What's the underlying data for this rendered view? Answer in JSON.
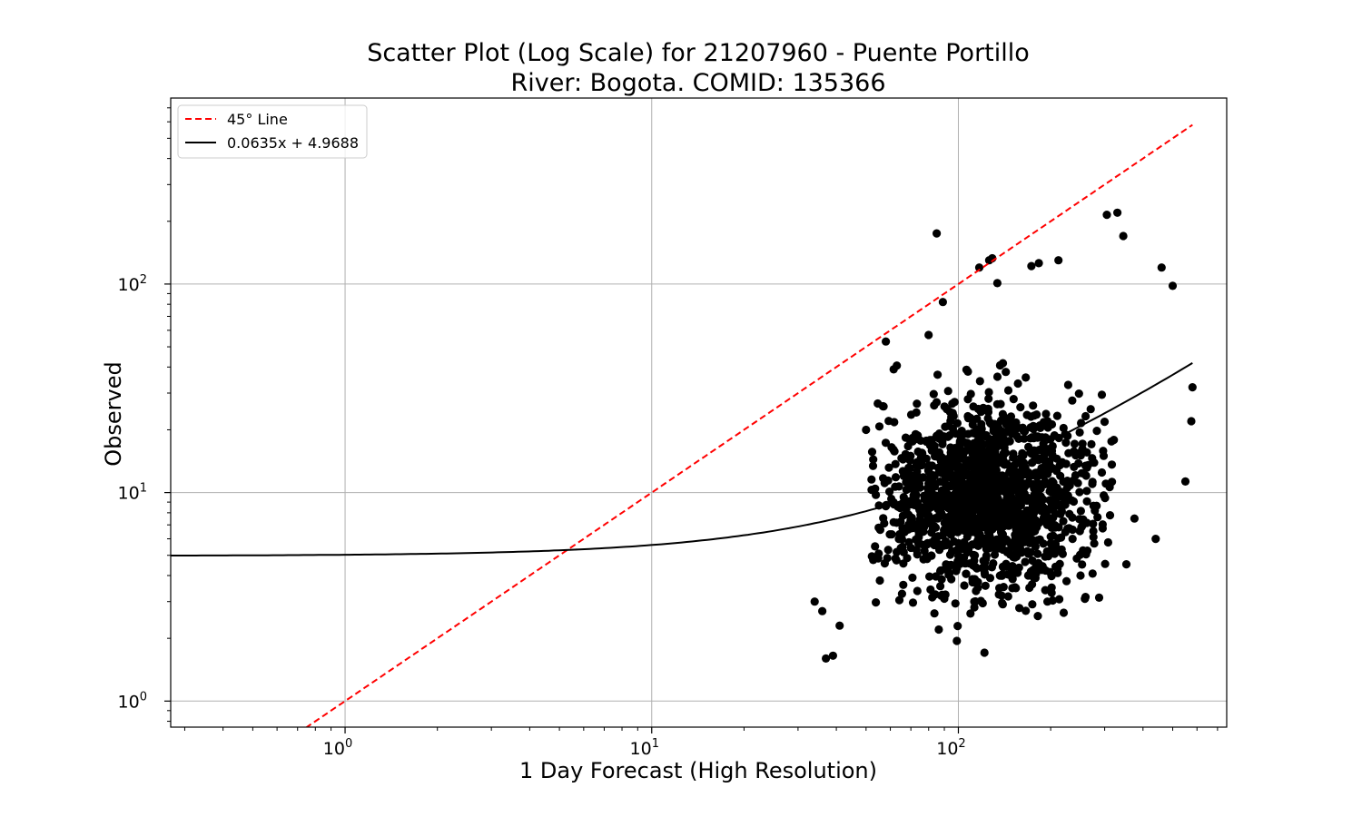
{
  "chart_data": {
    "type": "scatter",
    "title_line1": "Scatter Plot (Log Scale) for 21207960 - Puente Portillo",
    "title_line2": "River: Bogota. COMID: 135366",
    "xlabel": "1 Day Forecast (High Resolution)",
    "ylabel": "Observed",
    "x_scale": "log",
    "y_scale": "log",
    "xlim": [
      0.27,
      750
    ],
    "ylim": [
      0.75,
      780
    ],
    "grid": true,
    "legend_position": "top-left",
    "x_ticks": [
      {
        "value": 1,
        "base": "10",
        "exp": "0"
      },
      {
        "value": 10,
        "base": "10",
        "exp": "1"
      },
      {
        "value": 100,
        "base": "10",
        "exp": "2"
      }
    ],
    "y_ticks": [
      {
        "value": 1,
        "base": "10",
        "exp": "0"
      },
      {
        "value": 10,
        "base": "10",
        "exp": "1"
      },
      {
        "value": 100,
        "base": "10",
        "exp": "2"
      }
    ],
    "series": [
      {
        "name": "45° Line",
        "kind": "line",
        "color": "#ff0000",
        "dash": "dashed",
        "slope": 1,
        "intercept": 0,
        "x_range": [
          0.7,
          580
        ]
      },
      {
        "name": "0.0635x + 4.9688",
        "kind": "line",
        "color": "#000000",
        "dash": "solid",
        "slope": 0.0635,
        "intercept": 4.9688,
        "x_range": [
          0.27,
          580
        ]
      },
      {
        "name": "observations",
        "kind": "points",
        "color": "#000000",
        "notable_points": [
          [
            85,
            175
          ],
          [
            126,
            130
          ],
          [
            129,
            133
          ],
          [
            117,
            120
          ],
          [
            305,
            215
          ],
          [
            330,
            220
          ],
          [
            345,
            170
          ],
          [
            183,
            126
          ],
          [
            212,
            130
          ],
          [
            173,
            122
          ],
          [
            134,
            101
          ],
          [
            89,
            82
          ],
          [
            460,
            120
          ],
          [
            500,
            98
          ],
          [
            58,
            53
          ],
          [
            80,
            57
          ],
          [
            37,
            1.6
          ],
          [
            39,
            1.65
          ],
          [
            34,
            3
          ],
          [
            36,
            2.7
          ],
          [
            41,
            2.3
          ],
          [
            50,
            20
          ],
          [
            550,
            11.3
          ],
          [
            575,
            22
          ],
          [
            580,
            32
          ],
          [
            440,
            6
          ]
        ],
        "cloud": {
          "count": 1500,
          "x_range": [
            40,
            560
          ],
          "y_range": [
            1.6,
            70
          ],
          "center_x": 125,
          "center_y": 9.5,
          "min_y": 1.6
        }
      }
    ]
  }
}
